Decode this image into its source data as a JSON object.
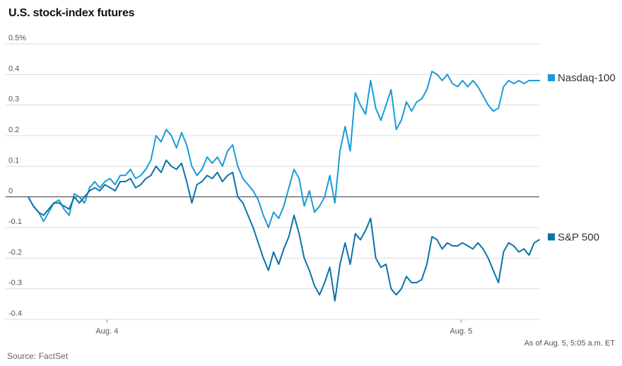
{
  "chart_data": {
    "type": "line",
    "title": "U.S. stock-index futures",
    "xlabel": "",
    "ylabel": "",
    "ylim": [
      -0.4,
      0.5
    ],
    "yticks": [
      {
        "value": 0.5,
        "label": "0.5%"
      },
      {
        "value": 0.4,
        "label": "0.4"
      },
      {
        "value": 0.3,
        "label": "0.3"
      },
      {
        "value": 0.2,
        "label": "0.2"
      },
      {
        "value": 0.1,
        "label": "0.1"
      },
      {
        "value": 0,
        "label": "0"
      },
      {
        "value": -0.1,
        "label": "-0.1"
      },
      {
        "value": -0.2,
        "label": "-0.2"
      },
      {
        "value": -0.3,
        "label": "-0.3"
      },
      {
        "value": -0.4,
        "label": "-0.4"
      }
    ],
    "xlim": [
      0,
      100
    ],
    "xticks": [
      {
        "value": 15.4,
        "label": "Aug. 4"
      },
      {
        "value": 84.7,
        "label": "Aug. 5"
      }
    ],
    "grid": true,
    "legend": "right",
    "series": [
      {
        "name": "Nasdaq-100",
        "color": "#1a9bd7",
        "points": [
          [
            0,
            0.0
          ],
          [
            1,
            -0.03
          ],
          [
            2,
            -0.05
          ],
          [
            3,
            -0.08
          ],
          [
            4,
            -0.05
          ],
          [
            5,
            -0.02
          ],
          [
            6,
            -0.01
          ],
          [
            7,
            -0.04
          ],
          [
            8,
            -0.06
          ],
          [
            9,
            0.01
          ],
          [
            10,
            0.0
          ],
          [
            11,
            -0.02
          ],
          [
            12,
            0.03
          ],
          [
            13,
            0.05
          ],
          [
            14,
            0.03
          ],
          [
            15,
            0.05
          ],
          [
            16,
            0.06
          ],
          [
            17,
            0.04
          ],
          [
            18,
            0.07
          ],
          [
            19,
            0.07
          ],
          [
            20,
            0.09
          ],
          [
            21,
            0.06
          ],
          [
            22,
            0.07
          ],
          [
            23,
            0.09
          ],
          [
            24,
            0.12
          ],
          [
            25,
            0.2
          ],
          [
            26,
            0.18
          ],
          [
            27,
            0.22
          ],
          [
            28,
            0.2
          ],
          [
            29,
            0.16
          ],
          [
            30,
            0.21
          ],
          [
            31,
            0.17
          ],
          [
            32,
            0.1
          ],
          [
            33,
            0.07
          ],
          [
            34,
            0.09
          ],
          [
            35,
            0.13
          ],
          [
            36,
            0.11
          ],
          [
            37,
            0.13
          ],
          [
            38,
            0.1
          ],
          [
            39,
            0.15
          ],
          [
            40,
            0.17
          ],
          [
            41,
            0.1
          ],
          [
            42,
            0.06
          ],
          [
            43,
            0.04
          ],
          [
            44,
            0.02
          ],
          [
            45,
            -0.01
          ],
          [
            46,
            -0.06
          ],
          [
            47,
            -0.1
          ],
          [
            48,
            -0.05
          ],
          [
            49,
            -0.07
          ],
          [
            50,
            -0.03
          ],
          [
            51,
            0.03
          ],
          [
            52,
            0.09
          ],
          [
            53,
            0.06
          ],
          [
            54,
            -0.03
          ],
          [
            55,
            0.02
          ],
          [
            56,
            -0.05
          ],
          [
            57,
            -0.03
          ],
          [
            58,
            0.0
          ],
          [
            59,
            0.07
          ],
          [
            60,
            -0.02
          ],
          [
            61,
            0.15
          ],
          [
            62,
            0.23
          ],
          [
            63,
            0.15
          ],
          [
            64,
            0.34
          ],
          [
            65,
            0.3
          ],
          [
            66,
            0.27
          ],
          [
            67,
            0.38
          ],
          [
            68,
            0.29
          ],
          [
            69,
            0.25
          ],
          [
            70,
            0.3
          ],
          [
            71,
            0.35
          ],
          [
            72,
            0.22
          ],
          [
            73,
            0.25
          ],
          [
            74,
            0.31
          ],
          [
            75,
            0.28
          ],
          [
            76,
            0.31
          ],
          [
            77,
            0.32
          ],
          [
            78,
            0.35
          ],
          [
            79,
            0.41
          ],
          [
            80,
            0.4
          ],
          [
            81,
            0.38
          ],
          [
            82,
            0.4
          ],
          [
            83,
            0.37
          ],
          [
            84,
            0.36
          ],
          [
            85,
            0.38
          ],
          [
            86,
            0.36
          ],
          [
            87,
            0.38
          ],
          [
            88,
            0.36
          ],
          [
            89,
            0.33
          ],
          [
            90,
            0.3
          ],
          [
            91,
            0.28
          ],
          [
            92,
            0.29
          ],
          [
            93,
            0.36
          ],
          [
            94,
            0.38
          ],
          [
            95,
            0.37
          ],
          [
            96,
            0.38
          ],
          [
            97,
            0.37
          ],
          [
            98,
            0.38
          ],
          [
            99,
            0.38
          ],
          [
            100,
            0.38
          ]
        ]
      },
      {
        "name": "S&P 500",
        "color": "#0a73a9",
        "points": [
          [
            0,
            0.0
          ],
          [
            1,
            -0.03
          ],
          [
            2,
            -0.05
          ],
          [
            3,
            -0.06
          ],
          [
            4,
            -0.04
          ],
          [
            5,
            -0.02
          ],
          [
            6,
            -0.02
          ],
          [
            7,
            -0.03
          ],
          [
            8,
            -0.04
          ],
          [
            9,
            0.0
          ],
          [
            10,
            -0.02
          ],
          [
            11,
            0.0
          ],
          [
            12,
            0.02
          ],
          [
            13,
            0.03
          ],
          [
            14,
            0.02
          ],
          [
            15,
            0.04
          ],
          [
            16,
            0.03
          ],
          [
            17,
            0.02
          ],
          [
            18,
            0.05
          ],
          [
            19,
            0.05
          ],
          [
            20,
            0.06
          ],
          [
            21,
            0.03
          ],
          [
            22,
            0.04
          ],
          [
            23,
            0.06
          ],
          [
            24,
            0.07
          ],
          [
            25,
            0.1
          ],
          [
            26,
            0.08
          ],
          [
            27,
            0.12
          ],
          [
            28,
            0.1
          ],
          [
            29,
            0.09
          ],
          [
            30,
            0.11
          ],
          [
            31,
            0.05
          ],
          [
            32,
            -0.02
          ],
          [
            33,
            0.04
          ],
          [
            34,
            0.05
          ],
          [
            35,
            0.07
          ],
          [
            36,
            0.06
          ],
          [
            37,
            0.08
          ],
          [
            38,
            0.05
          ],
          [
            39,
            0.07
          ],
          [
            40,
            0.08
          ],
          [
            41,
            0.0
          ],
          [
            42,
            -0.02
          ],
          [
            43,
            -0.06
          ],
          [
            44,
            -0.1
          ],
          [
            45,
            -0.15
          ],
          [
            46,
            -0.2
          ],
          [
            47,
            -0.24
          ],
          [
            48,
            -0.18
          ],
          [
            49,
            -0.22
          ],
          [
            50,
            -0.17
          ],
          [
            51,
            -0.13
          ],
          [
            52,
            -0.06
          ],
          [
            53,
            -0.12
          ],
          [
            54,
            -0.2
          ],
          [
            55,
            -0.24
          ],
          [
            56,
            -0.29
          ],
          [
            57,
            -0.32
          ],
          [
            58,
            -0.28
          ],
          [
            59,
            -0.23
          ],
          [
            60,
            -0.34
          ],
          [
            61,
            -0.22
          ],
          [
            62,
            -0.15
          ],
          [
            63,
            -0.22
          ],
          [
            64,
            -0.12
          ],
          [
            65,
            -0.14
          ],
          [
            66,
            -0.11
          ],
          [
            67,
            -0.07
          ],
          [
            68,
            -0.2
          ],
          [
            69,
            -0.23
          ],
          [
            70,
            -0.22
          ],
          [
            71,
            -0.3
          ],
          [
            72,
            -0.32
          ],
          [
            73,
            -0.3
          ],
          [
            74,
            -0.26
          ],
          [
            75,
            -0.28
          ],
          [
            76,
            -0.28
          ],
          [
            77,
            -0.27
          ],
          [
            78,
            -0.22
          ],
          [
            79,
            -0.13
          ],
          [
            80,
            -0.14
          ],
          [
            81,
            -0.17
          ],
          [
            82,
            -0.15
          ],
          [
            83,
            -0.16
          ],
          [
            84,
            -0.16
          ],
          [
            85,
            -0.15
          ],
          [
            86,
            -0.16
          ],
          [
            87,
            -0.17
          ],
          [
            88,
            -0.15
          ],
          [
            89,
            -0.17
          ],
          [
            90,
            -0.2
          ],
          [
            91,
            -0.24
          ],
          [
            92,
            -0.28
          ],
          [
            93,
            -0.18
          ],
          [
            94,
            -0.15
          ],
          [
            95,
            -0.16
          ],
          [
            96,
            -0.18
          ],
          [
            97,
            -0.17
          ],
          [
            98,
            -0.19
          ],
          [
            99,
            -0.15
          ],
          [
            100,
            -0.14
          ]
        ]
      }
    ]
  },
  "footnote": "As of Aug. 5, 5:05 a.m. ET",
  "source": "Source: FactSet"
}
